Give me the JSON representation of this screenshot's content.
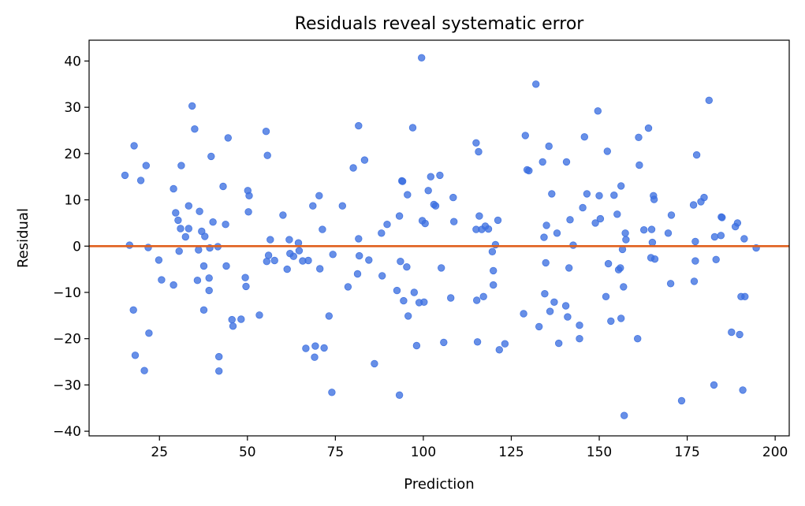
{
  "chart_data": {
    "type": "scatter",
    "title": "Residuals reveal systematic error",
    "xlabel": "Prediction",
    "ylabel": "Residual",
    "xlim": [
      5,
      204
    ],
    "ylim": [
      -41,
      44.5
    ],
    "xticks": [
      25,
      50,
      75,
      100,
      125,
      150,
      175,
      200
    ],
    "yticks": [
      -40,
      -30,
      -20,
      -10,
      0,
      10,
      20,
      30,
      40
    ],
    "xtick_labels": [
      "25",
      "50",
      "75",
      "100",
      "125",
      "150",
      "175",
      "200"
    ],
    "ytick_labels": [
      "−40",
      "−30",
      "−20",
      "−10",
      "0",
      "10",
      "20",
      "30",
      "40"
    ],
    "grid": false,
    "point_color": "#3c6fe0",
    "reference_line": {
      "y": 0,
      "color": "#e0601e"
    },
    "points": [
      [
        15.2,
        15.3
      ],
      [
        16.5,
        0.2
      ],
      [
        17.8,
        21.7
      ],
      [
        17.6,
        -13.8
      ],
      [
        18.1,
        -23.6
      ],
      [
        19.7,
        14.2
      ],
      [
        20.7,
        -26.9
      ],
      [
        21.2,
        17.4
      ],
      [
        21.8,
        -0.3
      ],
      [
        22.0,
        -18.8
      ],
      [
        24.8,
        -3.0
      ],
      [
        25.6,
        -7.3
      ],
      [
        29.0,
        12.4
      ],
      [
        29.0,
        -8.4
      ],
      [
        29.6,
        7.2
      ],
      [
        30.3,
        5.6
      ],
      [
        30.6,
        -1.1
      ],
      [
        31.0,
        3.8
      ],
      [
        31.2,
        17.4
      ],
      [
        32.4,
        2.0
      ],
      [
        33.3,
        3.8
      ],
      [
        33.3,
        8.7
      ],
      [
        34.3,
        30.3
      ],
      [
        35.0,
        25.3
      ],
      [
        35.8,
        -7.4
      ],
      [
        36.1,
        -0.8
      ],
      [
        36.4,
        7.5
      ],
      [
        37.0,
        3.2
      ],
      [
        37.6,
        -4.3
      ],
      [
        37.6,
        -13.8
      ],
      [
        37.9,
        2.1
      ],
      [
        39.1,
        -6.9
      ],
      [
        39.1,
        -9.6
      ],
      [
        39.3,
        -0.4
      ],
      [
        39.7,
        19.4
      ],
      [
        40.2,
        5.2
      ],
      [
        41.6,
        -0.1
      ],
      [
        41.9,
        -27.0
      ],
      [
        41.9,
        -23.9
      ],
      [
        43.1,
        12.9
      ],
      [
        43.8,
        4.7
      ],
      [
        44.0,
        -4.3
      ],
      [
        44.5,
        23.4
      ],
      [
        45.6,
        -15.9
      ],
      [
        45.9,
        -17.3
      ],
      [
        48.2,
        -15.8
      ],
      [
        49.4,
        -6.8
      ],
      [
        49.6,
        -8.7
      ],
      [
        50.1,
        12.0
      ],
      [
        50.3,
        7.4
      ],
      [
        50.5,
        10.9
      ],
      [
        53.4,
        -14.9
      ],
      [
        55.3,
        24.8
      ],
      [
        55.5,
        -3.3
      ],
      [
        55.7,
        19.6
      ],
      [
        56.0,
        -2.0
      ],
      [
        56.5,
        1.4
      ],
      [
        57.7,
        -3.1
      ],
      [
        60.1,
        6.7
      ],
      [
        61.3,
        -5.0
      ],
      [
        61.9,
        1.4
      ],
      [
        62.1,
        -1.6
      ],
      [
        63.1,
        -2.2
      ],
      [
        64.5,
        0.7
      ],
      [
        64.7,
        -1.0
      ],
      [
        65.7,
        -3.2
      ],
      [
        66.6,
        -22.1
      ],
      [
        67.3,
        -3.1
      ],
      [
        68.6,
        8.7
      ],
      [
        69.1,
        -24.0
      ],
      [
        69.3,
        -21.6
      ],
      [
        70.4,
        10.9
      ],
      [
        70.6,
        -4.9
      ],
      [
        71.3,
        3.6
      ],
      [
        71.8,
        -22.0
      ],
      [
        73.2,
        -15.1
      ],
      [
        74.0,
        -31.6
      ],
      [
        74.3,
        -1.8
      ],
      [
        77.0,
        8.7
      ],
      [
        78.6,
        -8.8
      ],
      [
        80.1,
        16.9
      ],
      [
        81.3,
        -6.0
      ],
      [
        81.6,
        1.6
      ],
      [
        81.6,
        26.0
      ],
      [
        81.8,
        -2.1
      ],
      [
        83.3,
        18.6
      ],
      [
        84.5,
        -3.0
      ],
      [
        86.1,
        -25.4
      ],
      [
        88.1,
        2.8
      ],
      [
        88.3,
        -6.4
      ],
      [
        89.7,
        4.7
      ],
      [
        92.5,
        -9.6
      ],
      [
        93.2,
        6.5
      ],
      [
        93.2,
        -32.2
      ],
      [
        93.5,
        -3.3
      ],
      [
        93.9,
        14.1
      ],
      [
        94.1,
        14.0
      ],
      [
        94.4,
        -11.8
      ],
      [
        95.3,
        -4.5
      ],
      [
        95.5,
        11.1
      ],
      [
        95.7,
        -15.1
      ],
      [
        97.0,
        25.6
      ],
      [
        97.4,
        -10.0
      ],
      [
        98.1,
        -21.5
      ],
      [
        98.8,
        -12.2
      ],
      [
        99.5,
        40.7
      ],
      [
        99.7,
        5.5
      ],
      [
        100.2,
        -12.1
      ],
      [
        100.5,
        4.9
      ],
      [
        101.4,
        12.0
      ],
      [
        102.1,
        15.0
      ],
      [
        103.0,
        9.0
      ],
      [
        103.5,
        8.7
      ],
      [
        104.7,
        15.3
      ],
      [
        105.1,
        -4.7
      ],
      [
        105.8,
        -20.8
      ],
      [
        107.8,
        -11.2
      ],
      [
        108.5,
        10.5
      ],
      [
        108.7,
        5.3
      ],
      [
        115.0,
        3.6
      ],
      [
        115.0,
        22.3
      ],
      [
        115.2,
        -11.7
      ],
      [
        115.4,
        -20.7
      ],
      [
        115.7,
        20.4
      ],
      [
        115.9,
        6.5
      ],
      [
        116.6,
        3.6
      ],
      [
        117.1,
        -10.9
      ],
      [
        117.6,
        4.3
      ],
      [
        118.5,
        3.7
      ],
      [
        119.6,
        -1.2
      ],
      [
        119.9,
        -5.3
      ],
      [
        119.9,
        -8.4
      ],
      [
        120.5,
        0.3
      ],
      [
        121.2,
        5.6
      ],
      [
        121.6,
        -22.4
      ],
      [
        123.2,
        -21.1
      ],
      [
        128.5,
        -14.6
      ],
      [
        129.0,
        23.9
      ],
      [
        129.5,
        16.5
      ],
      [
        130.0,
        16.3
      ],
      [
        132.0,
        35.0
      ],
      [
        132.9,
        -17.4
      ],
      [
        133.9,
        18.2
      ],
      [
        134.3,
        1.9
      ],
      [
        134.5,
        -10.3
      ],
      [
        134.8,
        -3.6
      ],
      [
        135.0,
        4.5
      ],
      [
        135.7,
        21.6
      ],
      [
        136.0,
        -14.1
      ],
      [
        136.5,
        11.3
      ],
      [
        137.2,
        -12.1
      ],
      [
        138.0,
        2.8
      ],
      [
        138.5,
        -21.0
      ],
      [
        140.5,
        -12.9
      ],
      [
        140.7,
        18.2
      ],
      [
        141.0,
        -15.3
      ],
      [
        141.4,
        -4.7
      ],
      [
        141.7,
        5.7
      ],
      [
        142.6,
        0.2
      ],
      [
        144.4,
        -20.0
      ],
      [
        144.4,
        -17.1
      ],
      [
        145.3,
        8.3
      ],
      [
        145.8,
        23.6
      ],
      [
        146.5,
        11.3
      ],
      [
        148.9,
        5.0
      ],
      [
        149.6,
        29.2
      ],
      [
        150.0,
        10.9
      ],
      [
        150.3,
        5.9
      ],
      [
        151.9,
        -10.9
      ],
      [
        152.3,
        20.5
      ],
      [
        152.6,
        -3.8
      ],
      [
        153.3,
        -16.2
      ],
      [
        154.2,
        11.0
      ],
      [
        155.1,
        6.9
      ],
      [
        155.5,
        -5.1
      ],
      [
        156.0,
        -4.7
      ],
      [
        156.2,
        13.0
      ],
      [
        156.2,
        -15.6
      ],
      [
        156.6,
        -0.7
      ],
      [
        156.9,
        -8.8
      ],
      [
        157.1,
        -36.6
      ],
      [
        157.4,
        2.8
      ],
      [
        157.6,
        1.4
      ],
      [
        160.9,
        -20.0
      ],
      [
        161.2,
        23.5
      ],
      [
        161.4,
        17.5
      ],
      [
        162.7,
        3.5
      ],
      [
        164.0,
        25.5
      ],
      [
        164.7,
        -2.5
      ],
      [
        164.9,
        3.6
      ],
      [
        165.1,
        0.8
      ],
      [
        165.4,
        10.9
      ],
      [
        165.6,
        10.1
      ],
      [
        165.8,
        -2.8
      ],
      [
        169.6,
        2.8
      ],
      [
        170.3,
        -8.1
      ],
      [
        170.5,
        6.7
      ],
      [
        173.4,
        -33.4
      ],
      [
        176.8,
        8.9
      ],
      [
        177.0,
        -7.6
      ],
      [
        177.3,
        -3.2
      ],
      [
        177.3,
        1.0
      ],
      [
        177.7,
        19.7
      ],
      [
        178.9,
        9.6
      ],
      [
        179.8,
        10.5
      ],
      [
        181.2,
        31.5
      ],
      [
        182.6,
        -30.0
      ],
      [
        182.8,
        2.0
      ],
      [
        183.2,
        -2.9
      ],
      [
        184.6,
        2.3
      ],
      [
        184.7,
        6.3
      ],
      [
        184.9,
        6.2
      ],
      [
        187.6,
        -18.6
      ],
      [
        188.7,
        4.2
      ],
      [
        189.3,
        5.0
      ],
      [
        189.9,
        -19.1
      ],
      [
        190.3,
        -10.9
      ],
      [
        190.8,
        -31.1
      ],
      [
        191.2,
        1.6
      ],
      [
        191.4,
        -10.9
      ],
      [
        194.6,
        -0.4
      ]
    ]
  }
}
